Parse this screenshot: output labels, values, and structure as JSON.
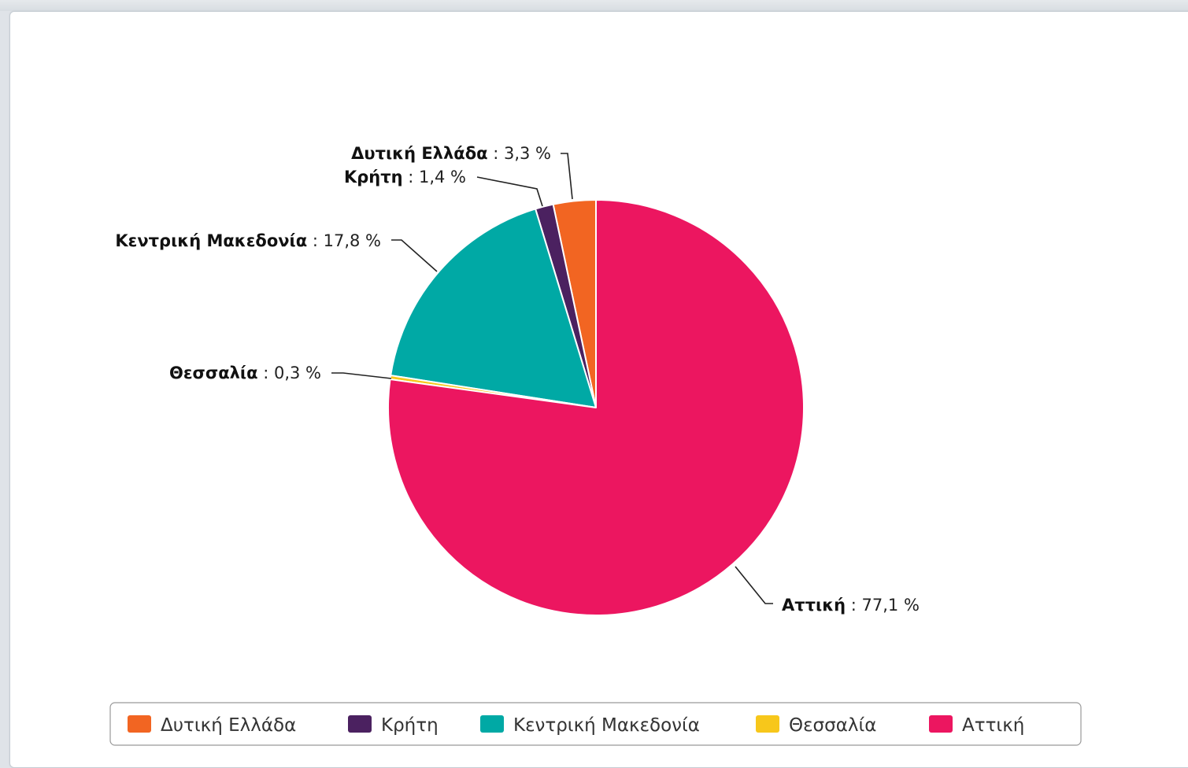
{
  "chart_data": {
    "type": "pie",
    "title": "",
    "value_suffix": " %",
    "legend_position": "bottom-center",
    "slices": [
      {
        "name": "Δυτική Ελλάδα",
        "value": 3.3,
        "value_label": "3,3",
        "color": "#f26522"
      },
      {
        "name": "Κρήτη",
        "value": 1.4,
        "value_label": "1,4",
        "color": "#4b2160"
      },
      {
        "name": "Κεντρική Μακεδονία",
        "value": 17.8,
        "value_label": "17,8",
        "color": "#00a9a5"
      },
      {
        "name": "Θεσσαλία",
        "value": 0.3,
        "value_label": "0,3",
        "color": "#f7c71b"
      },
      {
        "name": "Αττική",
        "value": 77.1,
        "value_label": "77,1",
        "color": "#ec1660"
      }
    ]
  }
}
